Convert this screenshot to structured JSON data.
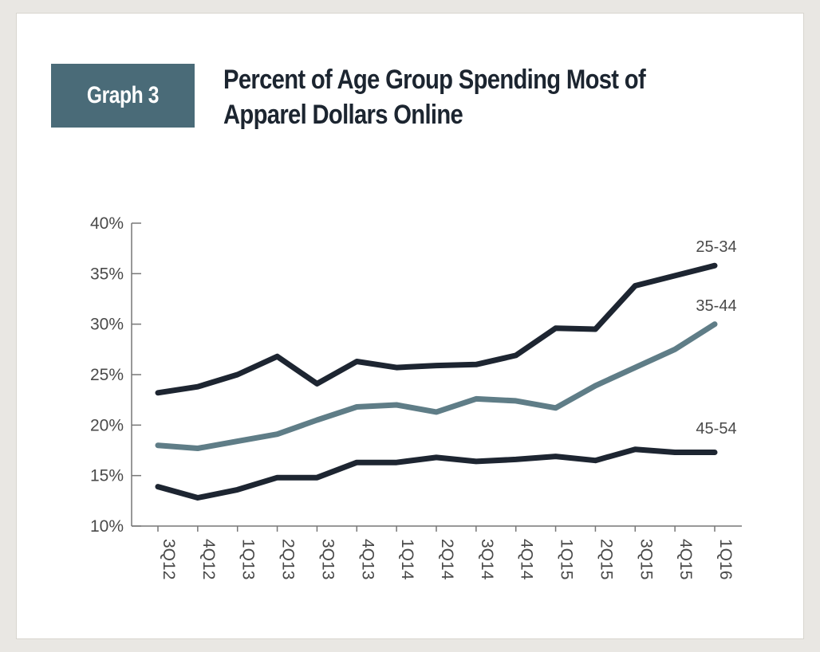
{
  "badge": {
    "label": "Graph 3"
  },
  "chart_data": {
    "type": "line",
    "title": "Percent of Age Group Spending Most of Apparel Dollars Online",
    "categories": [
      "3Q12",
      "4Q12",
      "1Q13",
      "2Q13",
      "3Q13",
      "4Q13",
      "1Q14",
      "2Q14",
      "3Q14",
      "4Q14",
      "1Q15",
      "2Q15",
      "3Q15",
      "4Q15",
      "1Q16"
    ],
    "ylim": [
      10,
      40
    ],
    "yticks": [
      10,
      15,
      20,
      25,
      30,
      35,
      40
    ],
    "ytick_labels": [
      "10%",
      "15%",
      "20%",
      "25%",
      "30%",
      "35%",
      "40%"
    ],
    "grid": false,
    "series": [
      {
        "name": "25-34",
        "color": "#1d2531",
        "values": [
          23.2,
          23.8,
          25.0,
          26.8,
          24.1,
          26.3,
          25.7,
          25.9,
          26.0,
          26.9,
          29.6,
          29.5,
          33.8,
          34.8,
          35.8
        ]
      },
      {
        "name": "35-44",
        "color": "#5f7d87",
        "values": [
          18.0,
          17.7,
          18.4,
          19.1,
          20.5,
          21.8,
          22.0,
          21.3,
          22.6,
          22.4,
          21.7,
          23.9,
          25.7,
          27.5,
          30.0
        ]
      },
      {
        "name": "45-54",
        "color": "#1d2531",
        "values": [
          13.9,
          12.8,
          13.6,
          14.8,
          14.8,
          16.3,
          16.3,
          16.8,
          16.4,
          16.6,
          16.9,
          16.5,
          17.6,
          17.3,
          17.3
        ]
      }
    ]
  }
}
